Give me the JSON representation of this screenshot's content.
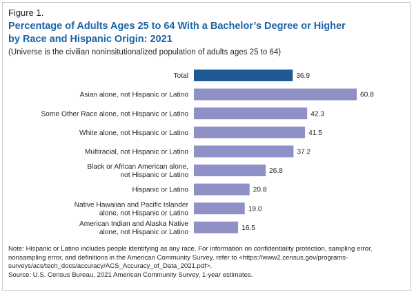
{
  "figure": {
    "label": "Figure 1.",
    "title_line1": "Percentage of Adults Ages 25 to 64 With a Bachelor’s Degree or Higher",
    "title_line2": "by Race and Hispanic Origin: 2021",
    "subtitle": "(Universe is the civilian noninsitutionalized population of adults ages 25 to 64)"
  },
  "chart_data": {
    "type": "bar",
    "orientation": "horizontal",
    "title": "Percentage of Adults Ages 25 to 64 With a Bachelor’s Degree or Higher by Race and Hispanic Origin: 2021",
    "xlabel": "",
    "ylabel": "",
    "xlim": [
      0,
      60.8
    ],
    "grid": false,
    "legend": "none",
    "categories": [
      [
        "Total"
      ],
      [
        "Asian alone, not Hispanic or Latino"
      ],
      [
        "Some Other Race alone, not Hispanic or Latino"
      ],
      [
        "White alone, not Hispanic or Latino"
      ],
      [
        "Multiracial, not Hispanic or Latino"
      ],
      [
        "Black or African American alone,",
        "not Hispanic or Latino"
      ],
      [
        "Hispanic or Latino"
      ],
      [
        "Native Hawaiian and Pacific Islander",
        "alone, not Hispanic or Latino"
      ],
      [
        "American Indian and Alaska Native",
        "alone, not Hispanic or Latino"
      ]
    ],
    "values": [
      36.9,
      60.8,
      42.3,
      41.5,
      37.2,
      26.8,
      20.8,
      19.0,
      16.5
    ],
    "value_labels": [
      "36.9",
      "60.8",
      "42.3",
      "41.5",
      "37.2",
      "26.8",
      "20.8",
      "19.0",
      "16.5"
    ],
    "colors": {
      "highlight": "#1f5a96",
      "bar": "#8e90c6"
    },
    "highlight_index": 0
  },
  "notes": {
    "note": "Note: Hispanic or Latino includes people identifying as any race. For information on confidentiality protection, sampling error, nonsampling error, and definitions in the American Community Survey, refer to <https://www2.census.gov/programs-surveys/acs/tech_docs/accuracy/ACS_Accuracy_of_Data_2021.pdf>.",
    "source": "Source: U.S. Census Bureau, 2021 American Community Survey, 1-year estimates."
  }
}
